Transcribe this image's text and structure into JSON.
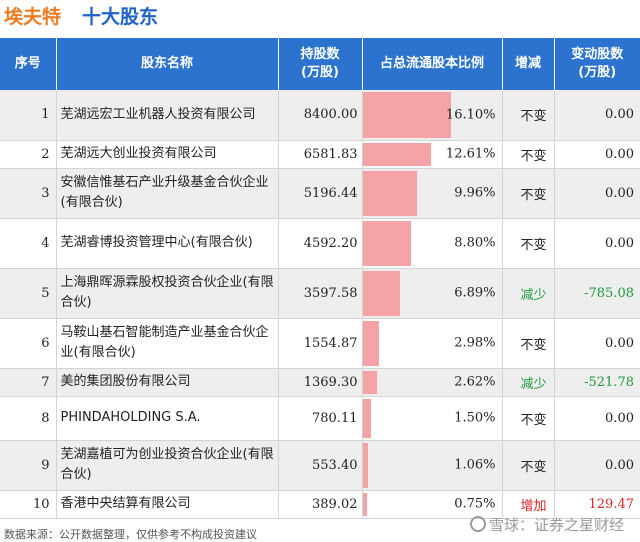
{
  "header": {
    "company": "埃夫特",
    "subtitle": "十大股东"
  },
  "table": {
    "columns": [
      "序号",
      "股东名称",
      "持股数\n(万股)",
      "占总流通股本比例",
      "增减",
      "变动股数\n(万股)"
    ],
    "rows": [
      {
        "rank": "1",
        "name": "芜湖远宏工业机器人投资有限公司",
        "shares": "8400.00",
        "ratio_text": "16.10%",
        "ratio": 16.1,
        "change": "不变",
        "delta": "0.00",
        "trend": "same"
      },
      {
        "rank": "2",
        "name": "芜湖远大创业投资有限公司",
        "shares": "6581.83",
        "ratio_text": "12.61%",
        "ratio": 12.61,
        "change": "不变",
        "delta": "0.00",
        "trend": "same"
      },
      {
        "rank": "3",
        "name": "安徽信惟基石产业升级基金合伙企业(有限合伙)",
        "shares": "5196.44",
        "ratio_text": "9.96%",
        "ratio": 9.96,
        "change": "不变",
        "delta": "0.00",
        "trend": "same"
      },
      {
        "rank": "4",
        "name": "芜湖睿博投资管理中心(有限合伙)",
        "shares": "4592.20",
        "ratio_text": "8.80%",
        "ratio": 8.8,
        "change": "不变",
        "delta": "0.00",
        "trend": "same"
      },
      {
        "rank": "5",
        "name": "上海鼎晖源霖股权投资合伙企业(有限合伙)",
        "shares": "3597.58",
        "ratio_text": "6.89%",
        "ratio": 6.89,
        "change": "减少",
        "delta": "-785.08",
        "trend": "down"
      },
      {
        "rank": "6",
        "name": "马鞍山基石智能制造产业基金合伙企业(有限合伙)",
        "shares": "1554.87",
        "ratio_text": "2.98%",
        "ratio": 2.98,
        "change": "不变",
        "delta": "0.00",
        "trend": "same"
      },
      {
        "rank": "7",
        "name": "美的集团股份有限公司",
        "shares": "1369.30",
        "ratio_text": "2.62%",
        "ratio": 2.62,
        "change": "减少",
        "delta": "-521.78",
        "trend": "down"
      },
      {
        "rank": "8",
        "name": "PHINDAHOLDING S.A.",
        "shares": "780.11",
        "ratio_text": "1.50%",
        "ratio": 1.5,
        "change": "不变",
        "delta": "0.00",
        "trend": "same"
      },
      {
        "rank": "9",
        "name": "芜湖嘉植可为创业投资合伙企业(有限合伙)",
        "shares": "553.40",
        "ratio_text": "1.06%",
        "ratio": 1.06,
        "change": "不变",
        "delta": "0.00",
        "trend": "same"
      },
      {
        "rank": "10",
        "name": "香港中央结算有限公司",
        "shares": "389.02",
        "ratio_text": "0.75%",
        "ratio": 0.75,
        "change": "增加",
        "delta": "129.47",
        "trend": "up"
      }
    ]
  },
  "footer": {
    "source": "数据来源：公开数据整理，仅供参考不构成投资建议"
  },
  "watermark": {
    "text": "雪球：证券之星财经"
  },
  "colors": {
    "header_bg": "#2b73cf",
    "company": "#f07a1e",
    "subtitle": "#1e63c8",
    "bar": "#f6a3a8",
    "down": "#1d9a39",
    "up": "#e02424"
  }
}
